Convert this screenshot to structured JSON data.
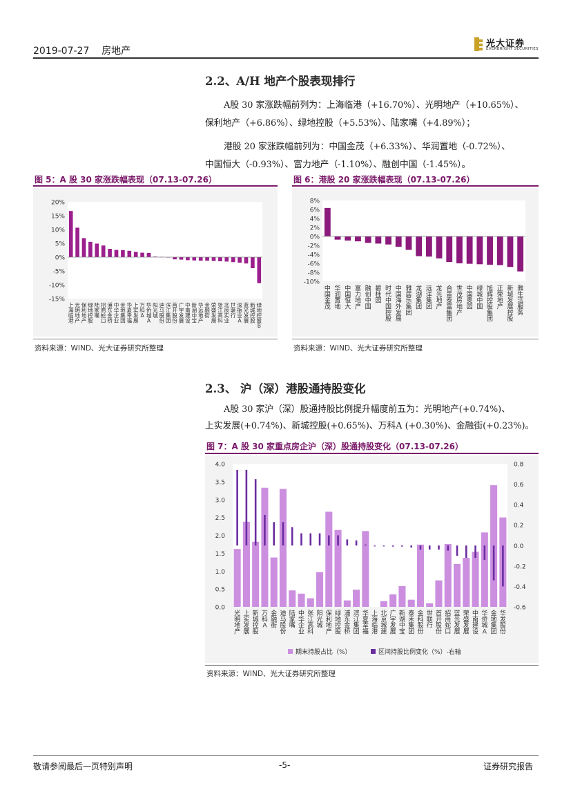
{
  "header": {
    "date": "2019-07-27",
    "sector": "房地产",
    "logo_cn": "光大证券",
    "logo_en": "EVERBRIGHT SECURITIES"
  },
  "section1": {
    "title": "2.2、A/H 地产个股表现排行",
    "p1_l1": "A股 30 家涨跌幅前列为：上海临港（+16.70%）、光明地产（+10.65%）、",
    "p1_l2": "保利地产（+6.86%）、绿地控股（+5.53%）、陆家嘴（+4.89%）；",
    "p2_l1": "港股 20 家涨跌幅前列为：中国金茂（+6.33%）、华润置地（-0.72%）、",
    "p2_l2": "中国恒大（-0.93%）、富力地产（-1.10%）、融创中国（-1.45%）。"
  },
  "fig5": {
    "title": "图 5：A 股 30 家涨跌幅表现（07.13-07.26）",
    "source": "资料来源：WIND、光大证券研究所整理"
  },
  "fig6": {
    "title": "图 6：港股 20 家涨跌幅表现（07.13-07.26）",
    "source": "资料来源：WIND、光大证券研究所整理"
  },
  "section2": {
    "title": "2.3、 沪（深）港股通持股变化",
    "p_l1": "A股 30 家沪（深）股通持股比例提升幅度前五为：光明地产(+0.74%)、",
    "p_l2": "上实发展(+0.74%)、新城控股(+0.65%)、万科A (+0.30%)、金融街(+0.23%)。"
  },
  "fig7": {
    "title": "图 7：A 股 30 家重点房企沪（深）股通持股变化（07.13-07.26）",
    "source": "资料来源：WIND、光大证券研究所整理"
  },
  "footer": {
    "left": "敬请参阅最后一页特别声明",
    "center": "-5-",
    "right": "证券研究报告"
  },
  "colors": {
    "accent": "#7a1a6a",
    "bar_a": "#9b1f8c",
    "bar_h": "#8b1a7c",
    "light": "#cc8fe0",
    "dark": "#6a2da0"
  },
  "chart_data": [
    {
      "type": "bar",
      "categories": [
        "上海临港",
        "光明地产",
        "保利地产",
        "绿地控股",
        "陆家嘴",
        "招商蛇口",
        "浦东金桥",
        "中华企业",
        "金地集团",
        "华夏幸福",
        "上实发展",
        "万科A",
        "华侨城A",
        "阳光城",
        "迪马股份",
        "滨江集团",
        "首开股份",
        "广宇发展",
        "中南建设",
        "新湖中宝",
        "华远地产",
        "金融街",
        "荣盛发展",
        "张江高科",
        "北辰实业",
        "世联行",
        "深振业A",
        "蓝光发展",
        "新城控股",
        "绿地控股B"
      ],
      "values": [
        16.7,
        10.65,
        6.86,
        5.53,
        4.89,
        4.2,
        3.0,
        2.6,
        2.5,
        2.3,
        1.9,
        1.6,
        1.5,
        0.2,
        0.1,
        0.0,
        -0.8,
        -0.9,
        -1.1,
        -1.2,
        -1.3,
        -1.3,
        -1.4,
        -1.5,
        -1.6,
        -1.8,
        -2.0,
        -2.3,
        -4.0,
        -9.4
      ],
      "ylim": [
        -15,
        20
      ],
      "yticks": [
        "20%",
        "15%",
        "10%",
        "5%",
        "0%",
        "-5%",
        "-10%",
        "-15%"
      ],
      "grid": false
    },
    {
      "type": "bar",
      "categories": [
        "中国金茂",
        "华润置地",
        "中国恒大",
        "富力地产",
        "融创中国",
        "碧桂园",
        "时代中国控股",
        "中国海外发展",
        "雅居乐集团",
        "龙湖集团",
        "远洋集团",
        "龙光地产",
        "合景泰富集团",
        "世茂房地产",
        "中国奥园",
        "绿城中国",
        "旭辉控股集团",
        "正荣地产",
        "新城发展控股",
        "雅生活服务"
      ],
      "values": [
        6.33,
        -0.72,
        -0.93,
        -1.1,
        -1.45,
        -1.6,
        -1.8,
        -2.3,
        -3.0,
        -4.4,
        -4.5,
        -4.9,
        -5.7,
        -6.0,
        -6.1,
        -6.2,
        -6.3,
        -6.4,
        -6.8,
        -7.8
      ],
      "ylim": [
        -10,
        8
      ],
      "yticks": [
        "8%",
        "6%",
        "4%",
        "2%",
        "0%",
        "-2%",
        "-4%",
        "-6%",
        "-8%",
        "-10%"
      ],
      "grid": false
    },
    {
      "type": "bar",
      "categories": [
        "光明地产",
        "上实发展",
        "新城控股",
        "万科A",
        "金融街",
        "迪马股份",
        "陆家嘴",
        "中华企业",
        "张江高科",
        "阳光城",
        "保利地产",
        "绿地控股",
        "浦东金桥",
        "滨江集团",
        "华夏幸福",
        "上海临港",
        "北京城建",
        "广宇发展",
        "新湖中宝",
        "泰禾集团",
        "金科股份",
        "世联行",
        "首开股份",
        "招商蛇口",
        "蓝光发展",
        "荣盛发展",
        "中南建设",
        "华侨城A",
        "金地集团",
        "华发股份"
      ],
      "series": [
        {
          "name": "期末持股占比（%）",
          "axis": "left",
          "values": [
            1.62,
            2.38,
            1.82,
            3.33,
            1.38,
            3.3,
            0.46,
            0.37,
            0.24,
            0.97,
            2.66,
            2.15,
            0.18,
            0.48,
            2.12,
            0.0,
            0.16,
            0.35,
            0.58,
            0.2,
            1.74,
            0.1,
            0.74,
            1.76,
            1.2,
            1.37,
            1.54,
            2.08,
            3.4,
            2.5
          ]
        },
        {
          "name": "区间持股比例变化（%）-右轴",
          "axis": "right",
          "values": [
            0.74,
            0.74,
            0.65,
            0.3,
            0.23,
            0.23,
            0.18,
            0.12,
            0.12,
            0.12,
            0.1,
            0.1,
            0.06,
            0.05,
            0.01,
            0.0,
            0.0,
            -0.01,
            -0.01,
            -0.02,
            -0.04,
            -0.04,
            -0.04,
            -0.05,
            -0.1,
            -0.12,
            -0.12,
            -0.14,
            -0.34,
            -0.4
          ]
        }
      ],
      "ylim": [
        0,
        4
      ],
      "y2lim": [
        -0.6,
        0.8
      ],
      "yticks": [
        "4.0",
        "3.5",
        "3.0",
        "2.5",
        "2.0",
        "1.5",
        "1.0",
        "0.5",
        "0.0"
      ],
      "y2ticks": [
        "0.8",
        "0.6",
        "0.4",
        "0.2",
        "0.0",
        "-0.2",
        "-0.4",
        "-0.6"
      ],
      "legend": "bottom",
      "grid": false
    }
  ]
}
